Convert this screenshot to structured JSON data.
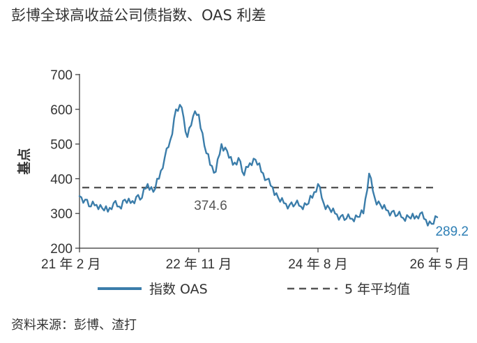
{
  "title": "彭博全球高收益公司债指数、OAS 利差",
  "source": "资料来源：彭博、渣打",
  "chart_data": {
    "type": "line",
    "ylabel": "基点",
    "ylim": [
      200,
      700
    ],
    "yticks": [
      "200",
      "300",
      "400",
      "500",
      "600",
      "700"
    ],
    "xticks": [
      {
        "date": "2021-02",
        "label": "21 年 2 月"
      },
      {
        "date": "2022-11",
        "label": "22 年 11 月"
      },
      {
        "date": "2024-08",
        "label": "24 年 8 月"
      },
      {
        "date": "2026-05",
        "label": "26 年 5 月"
      }
    ],
    "xlim": [
      "2021-02",
      "2026-05"
    ],
    "grid": false,
    "legend_position": "bottom",
    "colors": {
      "series": "#3b7daa",
      "average": "#555555",
      "end_label": "#2e7fb5"
    },
    "series": [
      {
        "name": "指数 OAS",
        "style": "solid",
        "x": [
          "2021-02",
          "2021-03",
          "2021-04",
          "2021-05",
          "2021-06",
          "2021-07",
          "2021-08",
          "2021-09",
          "2021-10",
          "2021-11",
          "2021-12",
          "2022-01",
          "2022-02",
          "2022-03",
          "2022-04",
          "2022-05",
          "2022-06",
          "2022-07",
          "2022-08",
          "2022-09",
          "2022-10",
          "2022-11",
          "2022-12",
          "2023-01",
          "2023-02",
          "2023-03",
          "2023-04",
          "2023-05",
          "2023-06",
          "2023-07",
          "2023-08",
          "2023-09",
          "2023-10",
          "2023-11",
          "2023-12",
          "2024-01",
          "2024-02",
          "2024-03",
          "2024-04",
          "2024-05",
          "2024-06",
          "2024-07",
          "2024-08",
          "2024-09",
          "2024-10",
          "2024-11",
          "2024-12",
          "2025-01",
          "2025-02",
          "2025-03",
          "2025-04",
          "2025-05",
          "2025-06",
          "2025-07",
          "2025-08",
          "2025-09",
          "2025-10",
          "2025-11",
          "2025-12",
          "2026-01",
          "2026-02",
          "2026-03",
          "2026-04",
          "2026-05"
        ],
        "values": [
          350,
          340,
          320,
          325,
          315,
          305,
          330,
          320,
          340,
          330,
          348,
          345,
          385,
          362,
          400,
          460,
          512,
          600,
          605,
          520,
          580,
          585,
          495,
          440,
          420,
          500,
          480,
          440,
          460,
          410,
          445,
          455,
          420,
          398,
          376,
          345,
          330,
          325,
          327,
          320,
          325,
          345,
          385,
          330,
          315,
          300,
          292,
          285,
          285,
          290,
          300,
          415,
          345,
          325,
          310,
          305,
          295,
          287,
          290,
          285,
          300,
          282,
          270,
          289.2
        ]
      },
      {
        "name": "5 年平均值",
        "style": "dashed",
        "constant": 374.6,
        "label": "374.6"
      }
    ],
    "annotations": [
      {
        "text": "374.6",
        "refers_to": "5 年平均值"
      },
      {
        "text": "289.2",
        "refers_to": "指数 OAS"
      }
    ]
  }
}
